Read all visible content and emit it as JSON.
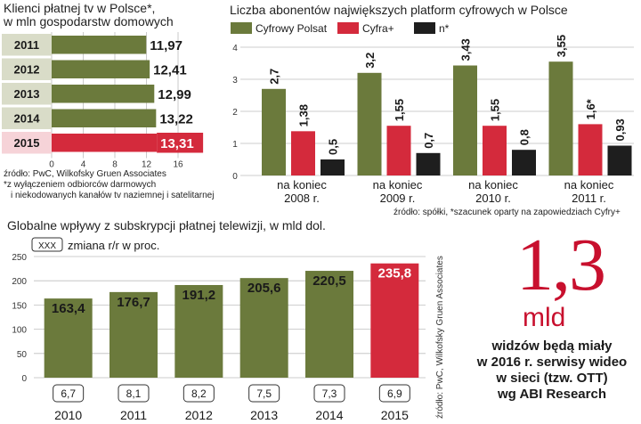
{
  "chart_data": [
    {
      "type": "bar",
      "orientation": "horizontal",
      "title": "Klienci płatnej tv w Polsce*,",
      "subtitle": "w mln gospodarstw domowych",
      "categories": [
        "2011",
        "2012",
        "2013",
        "2014",
        "2015"
      ],
      "values": [
        11.97,
        12.41,
        12.99,
        13.22,
        13.31
      ],
      "value_labels": [
        "11,97",
        "12,41",
        "12,99",
        "13,22",
        "13,31"
      ],
      "xlim": [
        0,
        16
      ],
      "x_ticks": [
        "0",
        "4",
        "8",
        "12",
        "16"
      ],
      "grid": true,
      "highlight_category": "2015",
      "source": "źródło: PwC, Wilkofsky Gruen Associates",
      "footnote_lines": [
        "*z wyłączeniem odbiorców darmowych",
        "i niekodowanych kanałów tv naziemnej i satelitarnej"
      ]
    },
    {
      "type": "bar",
      "title": "Liczba abonentów największych platform cyfrowych w Polsce",
      "categories": [
        "na koniec 2008 r.",
        "na koniec 2009 r.",
        "na koniec 2010 r.",
        "na koniec 2011 r."
      ],
      "category_lines": [
        [
          "na koniec",
          "2008 r."
        ],
        [
          "na koniec",
          "2009 r."
        ],
        [
          "na koniec",
          "2010 r."
        ],
        [
          "na koniec",
          "2011 r."
        ]
      ],
      "series": [
        {
          "name": "Cyfrowy Polsat",
          "color": "#6b7a3c",
          "values": [
            2.7,
            3.2,
            3.43,
            3.55
          ],
          "labels": [
            "2,7",
            "3,2",
            "3,43",
            "3,55"
          ]
        },
        {
          "name": "Cyfra+",
          "color": "#d42a3c",
          "values": [
            1.38,
            1.55,
            1.55,
            1.6
          ],
          "labels": [
            "1,38",
            "1,55",
            "1,55",
            "1,6*"
          ]
        },
        {
          "name": "n*",
          "color": "#1e1e1e",
          "values": [
            0.5,
            0.7,
            0.8,
            0.93
          ],
          "labels": [
            "0,5",
            "0,7",
            "0,8",
            "0,93"
          ]
        }
      ],
      "ylim": [
        0,
        4
      ],
      "y_ticks": [
        "0",
        "1",
        "2",
        "3",
        "4"
      ],
      "grid": true,
      "legend_position": "top-left",
      "source": "źródło: spółki, *szacunek oparty na zapowiedziach Cyfry+"
    },
    {
      "type": "bar",
      "title": "Globalne wpływy z subskrypcji płatnej telewizji, w mld dol.",
      "legend_key": "XXX",
      "legend_label": "zmiana r/r w proc.",
      "categories": [
        "2010",
        "2011",
        "2012",
        "2013",
        "2014",
        "2015"
      ],
      "values": [
        163.4,
        176.7,
        191.2,
        205.6,
        220.5,
        235.8
      ],
      "value_labels": [
        "163,4",
        "176,7",
        "191,2",
        "205,6",
        "220,5",
        "235,8"
      ],
      "change_labels": [
        "6,7",
        "8,1",
        "8,2",
        "7,5",
        "7,3",
        "6,9"
      ],
      "ylim": [
        0,
        250
      ],
      "y_ticks": [
        "0",
        "50",
        "100",
        "150",
        "200",
        "250"
      ],
      "grid": true,
      "highlight_category": "2015",
      "source": "źródło: PwC, Wilkofsky Gruen Associates"
    }
  ],
  "colors": {
    "olive": "#6b7a3c",
    "olive_light": "#8d9a55",
    "red": "#d42a3c",
    "black": "#1e1e1e",
    "grid": "#bdbdbd",
    "big_number": "#c8102e"
  },
  "highlight": {
    "number": "1,3",
    "unit": "mld",
    "text_lines": [
      "widzów będą miały",
      "w 2016 r. serwisy wideo",
      "w sieci (tzw. OTT)",
      "wg ABI Research"
    ]
  }
}
